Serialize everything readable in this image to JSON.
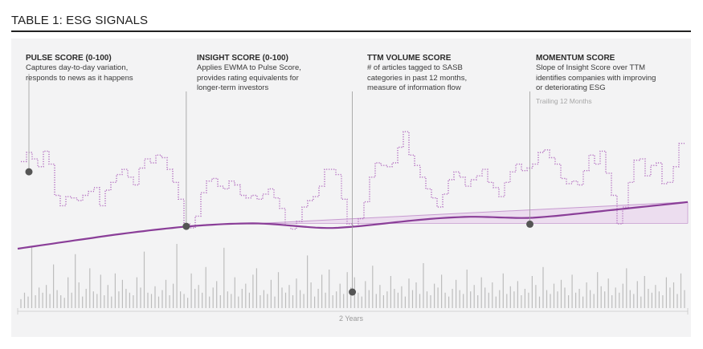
{
  "table_title": "TABLE 1: ESG SIGNALS",
  "annotations": [
    {
      "title": "PULSE SCORE (0-100)",
      "lines": [
        "Captures day-to-day variation,",
        "responds to news as it happens"
      ]
    },
    {
      "title": "INSIGHT SCORE (0-100)",
      "lines": [
        "Applies EWMA to Pulse Score,",
        "provides rating equivalents for",
        "longer-term investors"
      ]
    },
    {
      "title": "TTM VOLUME SCORE",
      "lines": [
        "# of articles tagged to SASB",
        "categories in past 12 months,",
        "measure of information flow"
      ]
    },
    {
      "title": "MOMENTUM SCORE",
      "lines": [
        "Slope of Insight Score over TTM",
        "identifies companies with improving",
        "or deteriorating ESG"
      ],
      "note": "Trailing 12 Months"
    }
  ],
  "colors": {
    "pulse": "#b36fc0",
    "insight": "#8a3e98",
    "volume": "#bdbdbd",
    "momentum_fill": "#ead6ee",
    "momentum_stroke": "#c79bd0",
    "marker": "#555555"
  },
  "chart_data": {
    "type": "line",
    "xlabel": "2 Years",
    "series": [
      {
        "name": "Pulse Score",
        "style": "dotted-step",
        "values": [
          72,
          79,
          74,
          68,
          80,
          70,
          46,
          38,
          45,
          44,
          42,
          46,
          49,
          52,
          38,
          50,
          56,
          62,
          66,
          60,
          54,
          67,
          74,
          71,
          77,
          75,
          66,
          56,
          43,
          24,
          21,
          30,
          48,
          57,
          59,
          53,
          51,
          57,
          54,
          46,
          44,
          46,
          43,
          47,
          51,
          44,
          36,
          23,
          20,
          26,
          37,
          42,
          45,
          53,
          66,
          66,
          62,
          43,
          24,
          22,
          28,
          41,
          60,
          71,
          69,
          68,
          71,
          83,
          95,
          77,
          69,
          60,
          51,
          44,
          37,
          47,
          58,
          64,
          60,
          53,
          58,
          61,
          66,
          56,
          52,
          45,
          56,
          64,
          70,
          65,
          67,
          70,
          79,
          81,
          75,
          70,
          59,
          55,
          57,
          54,
          65,
          77,
          70,
          80,
          63,
          46,
          24,
          37,
          56,
          73,
          74,
          61,
          69,
          71,
          55,
          56,
          68,
          86
        ]
      },
      {
        "name": "Insight Score",
        "style": "solid",
        "values": [
          0,
          1.1,
          2.1,
          3.1,
          4.2,
          5.2,
          6.2,
          7.3,
          8.3,
          9.3,
          10.4,
          11.4,
          12.4,
          13.4,
          14.5,
          15.5,
          16.5,
          17.5,
          18.4,
          19.3,
          20.2,
          21.1,
          21.9,
          22.8,
          23.6,
          24.4,
          25.2,
          25.9,
          26.7,
          27.3,
          27.9,
          28.5,
          29,
          29.5,
          29.9,
          30.3,
          30.7,
          31,
          31.2,
          31.4,
          31.5,
          31.6,
          31.5,
          31.2,
          30.9,
          30.4,
          29.8,
          29.2,
          28.6,
          28,
          27.4,
          26.8,
          26.3,
          26,
          25.8,
          25.8,
          26.1,
          26.6,
          27.1,
          27.7,
          28.4,
          29.1,
          29.8,
          30.6,
          31.4,
          32.2,
          33,
          33.7,
          34.5,
          35.2,
          35.9,
          36.5,
          37.1,
          37.7,
          38.2,
          38.6,
          39,
          39.3,
          39.6,
          39.8,
          39.8,
          39.7,
          39.5,
          39.3,
          39,
          38.8,
          38.6,
          38.4,
          38.3,
          38.4,
          38.6,
          39.1,
          39.7,
          40.3,
          40.9,
          41.6,
          42.3,
          43.1,
          43.8,
          44.6,
          45.4,
          46.1,
          46.9,
          47.7,
          48.4,
          49.2,
          49.9,
          50.6,
          51.4,
          52.1,
          52.8,
          53.6,
          54.3,
          55.1,
          55.8,
          56.6,
          57.4,
          58.2
        ]
      },
      {
        "name": "TTM Volume",
        "style": "bars",
        "values": [
          7,
          12,
          9,
          48,
          10,
          16,
          12,
          18,
          11,
          34,
          14,
          10,
          8,
          24,
          12,
          42,
          20,
          9,
          15,
          31,
          13,
          11,
          26,
          10,
          18,
          9,
          27,
          13,
          22,
          15,
          12,
          10,
          24,
          16,
          44,
          12,
          11,
          17,
          9,
          14,
          22,
          10,
          19,
          50,
          13,
          11,
          8,
          27,
          15,
          18,
          12,
          32,
          9,
          16,
          21,
          10,
          47,
          13,
          11,
          24,
          9,
          15,
          19,
          12,
          26,
          31,
          10,
          14,
          11,
          22,
          9,
          28,
          16,
          12,
          18,
          10,
          23,
          14,
          11,
          41,
          20,
          9,
          15,
          26,
          12,
          30,
          10,
          13,
          19,
          11,
          28,
          16,
          24,
          12,
          9,
          21,
          14,
          33,
          11,
          18,
          10,
          13,
          25,
          15,
          12,
          17,
          9,
          23,
          14,
          20,
          11,
          35,
          13,
          10,
          19,
          16,
          26,
          12,
          9,
          15,
          22,
          14,
          11,
          30,
          13,
          18,
          10,
          24,
          16,
          12,
          20,
          9,
          14,
          27,
          11,
          17,
          13,
          21,
          10,
          15,
          12,
          25,
          18,
          9,
          32,
          14,
          11,
          19,
          13,
          22,
          16,
          10,
          26,
          12,
          15,
          9,
          20,
          14,
          11,
          28,
          17,
          13,
          23,
          10,
          16,
          12,
          19,
          31,
          14,
          11,
          21,
          9,
          25,
          15,
          12,
          18,
          13,
          10,
          24,
          16,
          20,
          11,
          27,
          14
        ]
      }
    ],
    "momentum": {
      "label": "Trailing 12 Months",
      "start": 31.5,
      "end": 58.2
    }
  }
}
